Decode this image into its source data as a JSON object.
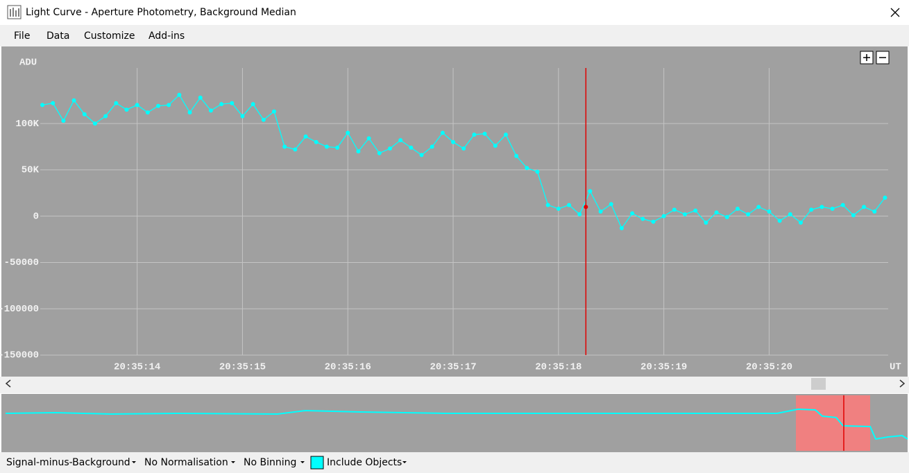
{
  "window": {
    "title": "Light Curve - Aperture Photometry, Background Median",
    "menu": [
      "File",
      "Data",
      "Customize",
      "Add-ins"
    ],
    "toolbar": [
      "Signal-minus-Background",
      "No Normalisation",
      "No Binning",
      "Include Objects"
    ]
  },
  "chart_data": {
    "type": "line",
    "y_label": "ADU",
    "x_label": "UT",
    "color": "#00ffff",
    "markers": true,
    "grid": true,
    "x": [
      13.1,
      13.2,
      13.3,
      13.4,
      13.5,
      13.6,
      13.7,
      13.8,
      13.9,
      14.0,
      14.1,
      14.2,
      14.3,
      14.4,
      14.5,
      14.6,
      14.7,
      14.8,
      14.9,
      15.0,
      15.1,
      15.2,
      15.3,
      15.4,
      15.5,
      15.6,
      15.7,
      15.8,
      15.9,
      16.0,
      16.1,
      16.2,
      16.3,
      16.4,
      16.5,
      16.6,
      16.7,
      16.8,
      16.9,
      17.0,
      17.1,
      17.2,
      17.3,
      17.4,
      17.5,
      17.6,
      17.7,
      17.8,
      17.9,
      18.0,
      18.1,
      18.2,
      18.3,
      18.4,
      18.5,
      18.6,
      18.7,
      18.8,
      18.9,
      19.0,
      19.1,
      19.2,
      19.3,
      19.4,
      19.5,
      19.6,
      19.7,
      19.8,
      19.9,
      20.0,
      20.1,
      20.2,
      20.3,
      20.4,
      20.5,
      20.6,
      20.7,
      20.8,
      20.9,
      21.0,
      21.1
    ],
    "values": [
      120000,
      122000,
      103000,
      125000,
      110000,
      100000,
      108000,
      122000,
      115000,
      120000,
      112000,
      119000,
      120000,
      131000,
      112000,
      128000,
      114000,
      121000,
      122000,
      108000,
      121000,
      104000,
      113000,
      75000,
      72000,
      86000,
      80000,
      75000,
      74000,
      90000,
      70000,
      84000,
      68000,
      73000,
      82000,
      74000,
      66000,
      75000,
      90000,
      80000,
      73000,
      88000,
      89000,
      76000,
      88000,
      65000,
      52000,
      48000,
      12000,
      8000,
      12000,
      2000,
      27000,
      5000,
      13000,
      -13000,
      3000,
      -3000,
      -6000,
      0,
      7000,
      2000,
      6000,
      -7000,
      4000,
      -1000,
      8000,
      2000,
      10000,
      5000,
      -5000,
      2000,
      -7000,
      7000,
      10000,
      8000,
      12000,
      1000,
      10000,
      5000,
      20000
    ],
    "cursor": {
      "x": 18.26,
      "value": 10000,
      "color": "#e00000"
    },
    "xlim": [
      13.08,
      21.13
    ],
    "xticks": [
      {
        "value": 14,
        "label": "20:35:14"
      },
      {
        "value": 15,
        "label": "20:35:15"
      },
      {
        "value": 16,
        "label": "20:35:16"
      },
      {
        "value": 17,
        "label": "20:35:17"
      },
      {
        "value": 18,
        "label": "20:35:18"
      },
      {
        "value": 19,
        "label": "20:35:19"
      },
      {
        "value": 20,
        "label": "20:35:20"
      }
    ],
    "ylim": [
      -150000,
      160000
    ],
    "yticks": [
      {
        "value": -150000,
        "label": "-150000"
      },
      {
        "value": -100000,
        "label": "-100000"
      },
      {
        "value": -50000,
        "label": "-50000"
      },
      0,
      {
        "value": 50000,
        "label": "50K"
      },
      {
        "value": 100000,
        "label": "100K"
      }
    ]
  }
}
